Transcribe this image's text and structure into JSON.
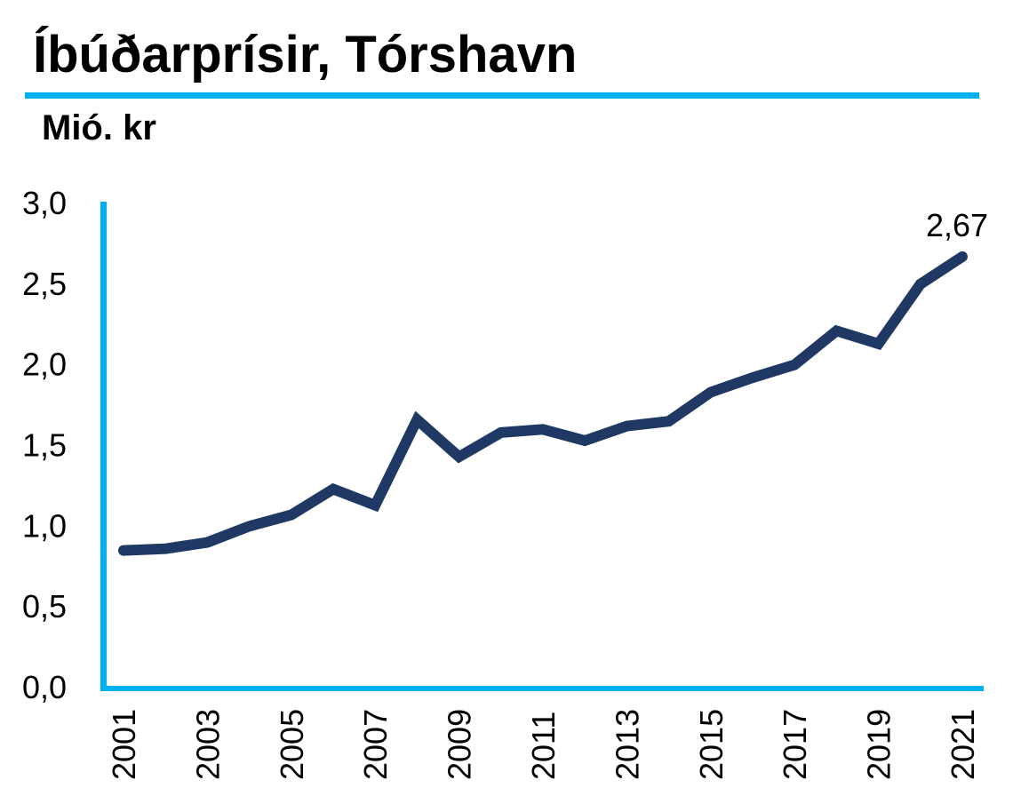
{
  "page": {
    "title": "Íbúðarprísir, Tórshavn",
    "unit_label": "Mió. kr"
  },
  "colors": {
    "accent_cyan": "#00B0F0",
    "line_navy": "#1F3864",
    "text": "#000000",
    "background": "#FFFFFF"
  },
  "chart_data": {
    "type": "line",
    "title": "Íbúðarprísir, Tórshavn",
    "ylabel": "Mió. kr",
    "x": [
      2001,
      2002,
      2003,
      2004,
      2005,
      2006,
      2007,
      2008,
      2009,
      2010,
      2011,
      2012,
      2013,
      2014,
      2015,
      2016,
      2017,
      2018,
      2019,
      2020,
      2021
    ],
    "values": [
      0.85,
      0.86,
      0.9,
      1.0,
      1.07,
      1.23,
      1.13,
      1.66,
      1.43,
      1.58,
      1.6,
      1.53,
      1.62,
      1.65,
      1.83,
      1.92,
      2.0,
      2.21,
      2.13,
      2.5,
      2.67
    ],
    "series_name": "Íbúðarprísir, Tórshavn",
    "ylim": [
      0.0,
      3.0
    ],
    "ytick_values": [
      0.0,
      0.5,
      1.0,
      1.5,
      2.0,
      2.5,
      3.0
    ],
    "ytick_labels": [
      "0,0",
      "0,5",
      "1,0",
      "1,5",
      "2,0",
      "2,5",
      "3,0"
    ],
    "xtick_labels": [
      "2001",
      "2003",
      "2005",
      "2007",
      "2009",
      "2011",
      "2013",
      "2015",
      "2017",
      "2019",
      "2021"
    ],
    "xtick_rotation_deg": -90,
    "end_label": "2,67",
    "grid": false,
    "legend": false,
    "decimal_separator": ","
  }
}
